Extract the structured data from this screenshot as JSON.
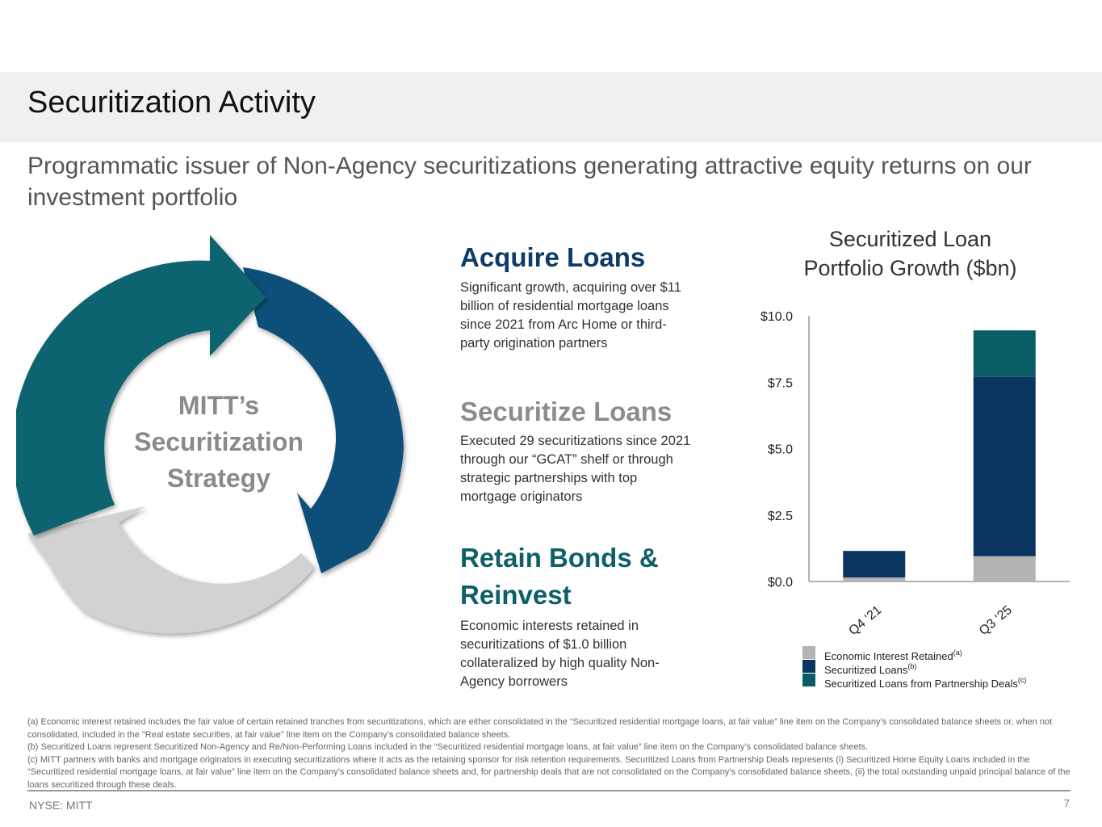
{
  "header": {
    "title": "Securitization Activity",
    "subtitle": "Programmatic issuer of Non-Agency securitizations generating attractive equity returns on our investment portfolio"
  },
  "cycle": {
    "label_line1": "MITT’s",
    "label_line2": "Securitization",
    "label_line3": "Strategy",
    "colors": {
      "teal": "#0f6370",
      "navy": "#104f78",
      "gray": "#d2d2d2"
    }
  },
  "steps": [
    {
      "heading": "Acquire Loans",
      "color": "#0c3c68",
      "text": "Significant growth, acquiring over $11 billion of residential mortgage loans since 2021 from Arc Home or third-party origination partners"
    },
    {
      "heading": "Securitize Loans",
      "color": "#8c8c8c",
      "text": "Executed 29 securitizations since 2021 through our “GCAT” shelf or through strategic partnerships with top mortgage originators"
    },
    {
      "heading_line1": "Retain Bonds &",
      "heading_line2": "Reinvest",
      "color": "#0e5f68",
      "text": "Economic interests retained in securitizations of $1.0 billion collateralized by high quality Non-Agency borrowers"
    }
  ],
  "chart_data": {
    "type": "bar",
    "stacked": true,
    "title_line1": "Securitized Loan",
    "title_line2": "Portfolio Growth ($bn)",
    "categories": [
      "Q4 ‘21",
      "Q3 ‘25"
    ],
    "series": [
      {
        "name": "Economic Interest Retained",
        "note": "(a)",
        "color": "#b4b4b4",
        "values": [
          0.15,
          0.95
        ]
      },
      {
        "name": "Securitized Loans",
        "note": "(b)",
        "color": "#0b3561",
        "values": [
          1.0,
          6.75
        ]
      },
      {
        "name": "Securitized Loans from Partnership Deals",
        "note": "(c)",
        "color": "#0a5c66",
        "values": [
          0.0,
          1.75
        ]
      }
    ],
    "ylim": [
      0,
      10
    ],
    "yticks": [
      0,
      2.5,
      5,
      7.5,
      10
    ],
    "ytick_labels": [
      "$0.0",
      "$2.5",
      "$5.0",
      "$7.5",
      "$10.0"
    ],
    "legend": "bottom",
    "grid": false
  },
  "footnotes": [
    "(a) Economic interest retained includes the fair value of certain retained tranches from securitizations, which are either consolidated in the “Securitized residential mortgage loans, at fair value” line item on the Company’s consolidated balance sheets or, when not consolidated, included in the \"Real estate securities, at fair value\" line item on the Company’s consolidated balance sheets.",
    "(b) Securitized Loans represent Securitized Non-Agency and Re/Non-Performing Loans included in the “Securitized residential mortgage loans, at fair value” line item on the Company’s consolidated balance sheets.",
    "(c) MITT partners with banks and mortgage originators in executing securitizations where it acts as the retaining sponsor for risk retention requirements. Securitized Loans from Partnership Deals represents (i) Securitized Home Equity Loans included in the “Securitized residential mortgage loans, at fair value” line item on the Company’s consolidated balance sheets and, for partnership deals that are not consolidated on the Company’s consolidated balance sheets, (ii) the total outstanding unpaid principal balance of the loans securitized through these deals."
  ],
  "footer": {
    "ticker": "NYSE: MITT",
    "page": "7"
  }
}
